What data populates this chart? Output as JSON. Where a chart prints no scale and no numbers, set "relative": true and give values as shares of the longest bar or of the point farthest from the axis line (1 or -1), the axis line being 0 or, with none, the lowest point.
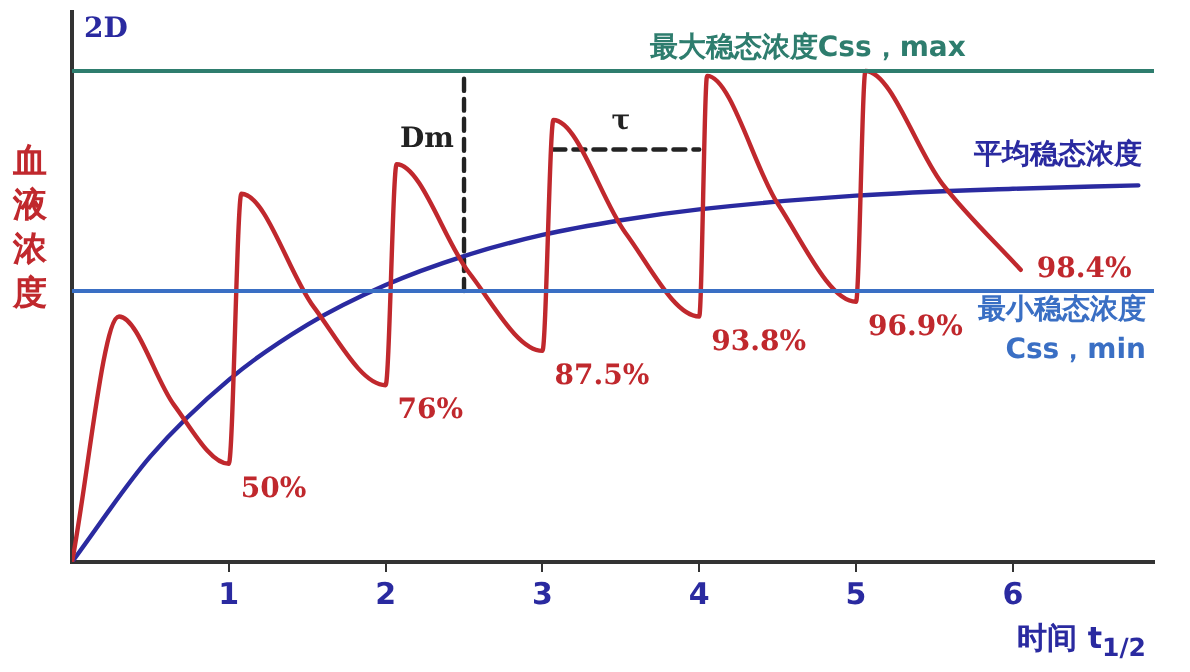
{
  "chart_data": {
    "type": "line",
    "relative": true,
    "xlabel": "时间 t$_{1/2}$",
    "ylabel": "血液浓度",
    "xlim": [
      0,
      6.9
    ],
    "xticks": [
      1,
      2,
      3,
      4,
      5,
      6
    ],
    "grid": false,
    "legend": false,
    "marker": "none",
    "line_style": "solid",
    "series": [
      {
        "color": "#c0282d",
        "x": [
          0,
          0.3,
          0.65,
          1.0,
          1.08,
          1.54,
          2.0,
          2.07,
          2.53,
          3.0,
          3.07,
          3.53,
          4.0,
          4.05,
          4.5,
          5.0,
          5.06,
          5.55,
          6.05
        ],
        "values": [
          0,
          0.5,
          0.32,
          0.2,
          0.75,
          0.52,
          0.36,
          0.81,
          0.59,
          0.43,
          0.9,
          0.67,
          0.5,
          0.99,
          0.73,
          0.53,
          1.0,
          0.77,
          0.595
        ]
      },
      {
        "name": "平均稳态浓度",
        "color": "#2a2aa0",
        "x": [
          0,
          0.5,
          1,
          1.5,
          2,
          2.5,
          3,
          3.5,
          4,
          5,
          6,
          6.8
        ],
        "values": [
          0,
          0.215,
          0.371,
          0.483,
          0.564,
          0.623,
          0.666,
          0.696,
          0.718,
          0.746,
          0.76,
          0.767
        ]
      },
      {
        "color": "#222222",
        "line_style": "dashed",
        "x": [
          2.5,
          2.5
        ],
        "values": [
          0.552,
          1.0
        ]
      },
      {
        "color": "#222222",
        "line_style": "dashed",
        "x": [
          3.07,
          4.0
        ],
        "values": [
          0.84,
          0.84
        ]
      }
    ],
    "ref_lines": [
      {
        "axis": "y",
        "value": 1.0,
        "label": "最大稳态浓度Css，max",
        "color": "#2e7d6e"
      },
      {
        "axis": "y",
        "value": 0.552,
        "label": "最小稳态浓度\nCss，min",
        "color": "#3a6fc4"
      }
    ],
    "annotations": [
      "2D",
      {
        "text": "Dm",
        "x": 2.5,
        "y": 0.86
      },
      {
        "text": "τ",
        "x": 3.5,
        "y": 0.86
      },
      {
        "text": "50%",
        "x": 1.0,
        "y": 0.2
      },
      {
        "text": "76%",
        "x": 2.0,
        "y": 0.36
      },
      {
        "text": "87.5%",
        "x": 3.0,
        "y": 0.43
      },
      {
        "text": "93.8%",
        "x": 4.0,
        "y": 0.5
      },
      {
        "text": "96.9%",
        "x": 5.0,
        "y": 0.53
      },
      {
        "text": "98.4%",
        "x": 6.05,
        "y": 0.595
      }
    ]
  }
}
